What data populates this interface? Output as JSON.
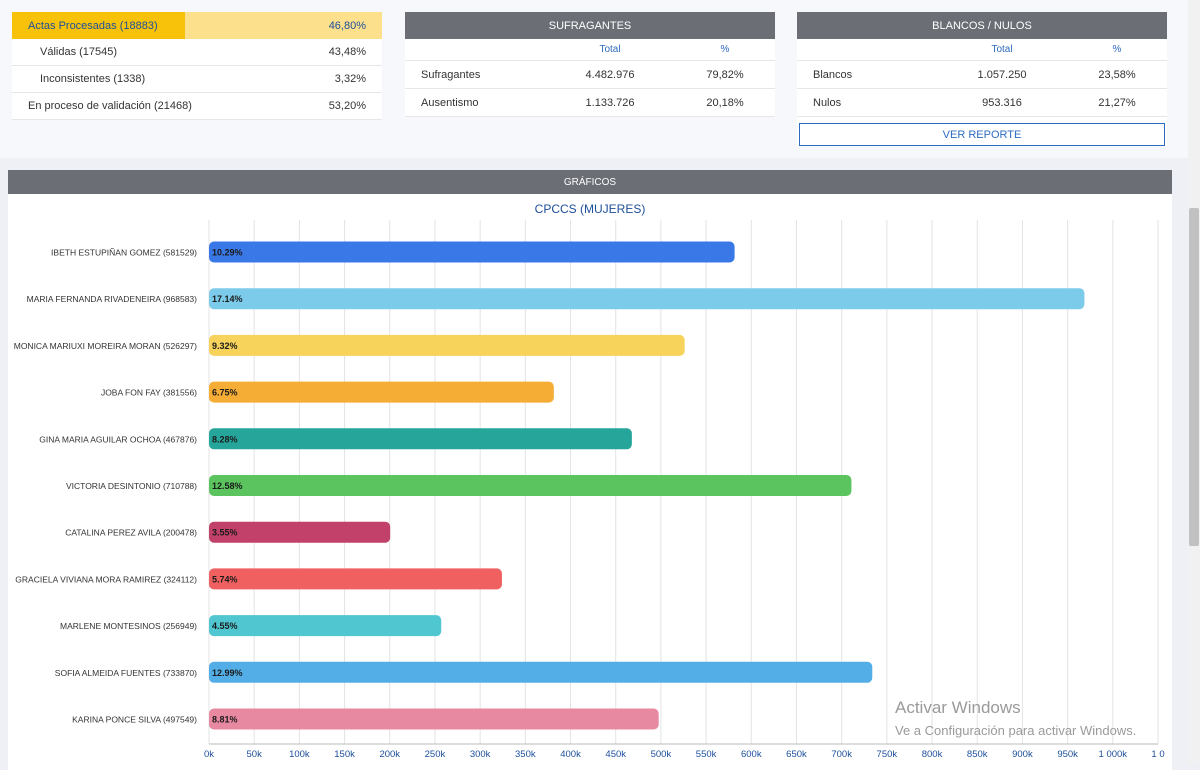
{
  "actas": {
    "processed": {
      "label": "Actas Procesadas (18883)",
      "value": "46,80%",
      "fraction": 0.468
    },
    "rows": [
      {
        "label": "Válidas (17545)",
        "value": "43,48%"
      },
      {
        "label": "Inconsistentes (1338)",
        "value": "3,32%"
      },
      {
        "label": "En proceso de validación (21468)",
        "value": "53,20%"
      }
    ]
  },
  "sufragantes": {
    "title": "SUFRAGANTES",
    "col_total": "Total",
    "col_pct": "%",
    "rows": [
      {
        "label": "Sufragantes",
        "total": "4.482.976",
        "pct": "79,82%"
      },
      {
        "label": "Ausentismo",
        "total": "1.133.726",
        "pct": "20,18%"
      }
    ]
  },
  "blancos": {
    "title": "BLANCOS / NULOS",
    "col_total": "Total",
    "col_pct": "%",
    "rows": [
      {
        "label": "Blancos",
        "total": "1.057.250",
        "pct": "23,58%"
      },
      {
        "label": "Nulos",
        "total": "953.316",
        "pct": "21,27%"
      }
    ],
    "report_button": "VER REPORTE"
  },
  "graficos": {
    "header": "GRÁFICOS"
  },
  "chart_data": {
    "type": "bar",
    "orientation": "horizontal",
    "title": "CPCCS (MUJERES)",
    "categories": [
      "IBETH ESTUPIÑAN GOMEZ (581529)",
      "MARIA FERNANDA RIVADENEIRA (968583)",
      "MONICA MARIUXI MOREIRA MORAN (526297)",
      "JOBA FON FAY (381556)",
      "GINA MARIA AGUILAR OCHOA (467876)",
      "VICTORIA DESINTONIO (710788)",
      "CATALINA PEREZ AVILA (200478)",
      "GRACIELA VIVIANA MORA RAMIREZ (324112)",
      "MARLENE MONTESINOS (256949)",
      "SOFIA ALMEIDA FUENTES (733870)",
      "KARINA PONCE SILVA (497549)"
    ],
    "values": [
      581529,
      968583,
      526297,
      381556,
      467876,
      710788,
      200478,
      324112,
      256949,
      733870,
      497549
    ],
    "data_labels": [
      "10.29%",
      "17.14%",
      "9.32%",
      "6.75%",
      "8.28%",
      "12.58%",
      "3.55%",
      "5.74%",
      "4.55%",
      "12.99%",
      "8.81%"
    ],
    "colors": [
      "#3b78e7",
      "#7dcbea",
      "#f7d35c",
      "#f5ad36",
      "#26a69a",
      "#5cc45e",
      "#c2416b",
      "#f06060",
      "#4fc6d0",
      "#53aee8",
      "#e889a2"
    ],
    "xlim": [
      0,
      1050000
    ],
    "xticks": [
      0,
      50000,
      100000,
      150000,
      200000,
      250000,
      300000,
      350000,
      400000,
      450000,
      500000,
      550000,
      600000,
      650000,
      700000,
      750000,
      800000,
      850000,
      900000,
      950000,
      1000000,
      1050000
    ],
    "xtick_labels": [
      "0k",
      "50k",
      "100k",
      "150k",
      "200k",
      "250k",
      "300k",
      "350k",
      "400k",
      "450k",
      "500k",
      "550k",
      "600k",
      "650k",
      "700k",
      "750k",
      "800k",
      "850k",
      "900k",
      "950k",
      "1 000k",
      "1 0"
    ],
    "grid": true
  },
  "watermark": {
    "line1": "Activar Windows",
    "line2": "Ve a Configuración para activar Windows."
  }
}
